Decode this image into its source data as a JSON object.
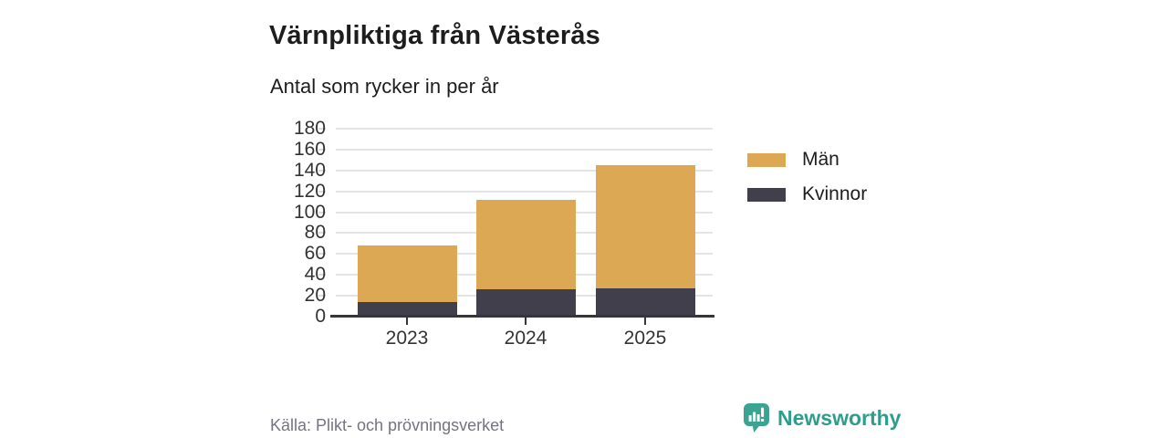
{
  "header": {
    "title": "Värnpliktiga från Västerås",
    "subtitle": "Antal som rycker in per år"
  },
  "chart_data": {
    "type": "bar",
    "stacked": true,
    "title": "Värnpliktiga från Västerås",
    "subtitle": "Antal som rycker in per år",
    "categories": [
      "2023",
      "2024",
      "2025"
    ],
    "series": [
      {
        "name": "Män",
        "values": [
          54,
          86,
          118
        ],
        "color": "#dca853"
      },
      {
        "name": "Kvinnor",
        "values": [
          14,
          26,
          27
        ],
        "color": "#423f4d"
      }
    ],
    "stack_order_bottom_up": [
      "Kvinnor",
      "Män"
    ],
    "totals": [
      68,
      112,
      145
    ],
    "xlabel": "",
    "ylabel": "",
    "ylim": [
      0,
      180
    ],
    "ytick_step": 20,
    "yticks": [
      0,
      20,
      40,
      60,
      80,
      100,
      120,
      140,
      160,
      180
    ],
    "grid": true,
    "legend_position": "right"
  },
  "colors": {
    "men": "#dca853",
    "women": "#423f4d",
    "grid": "#e4e4e6",
    "axis": "#37343f",
    "brand_teal": "#2f9d8c",
    "source_gray": "#757380"
  },
  "footer": {
    "source": "Källa: Plikt- och prövningsverket",
    "brand": "Newsworthy"
  }
}
